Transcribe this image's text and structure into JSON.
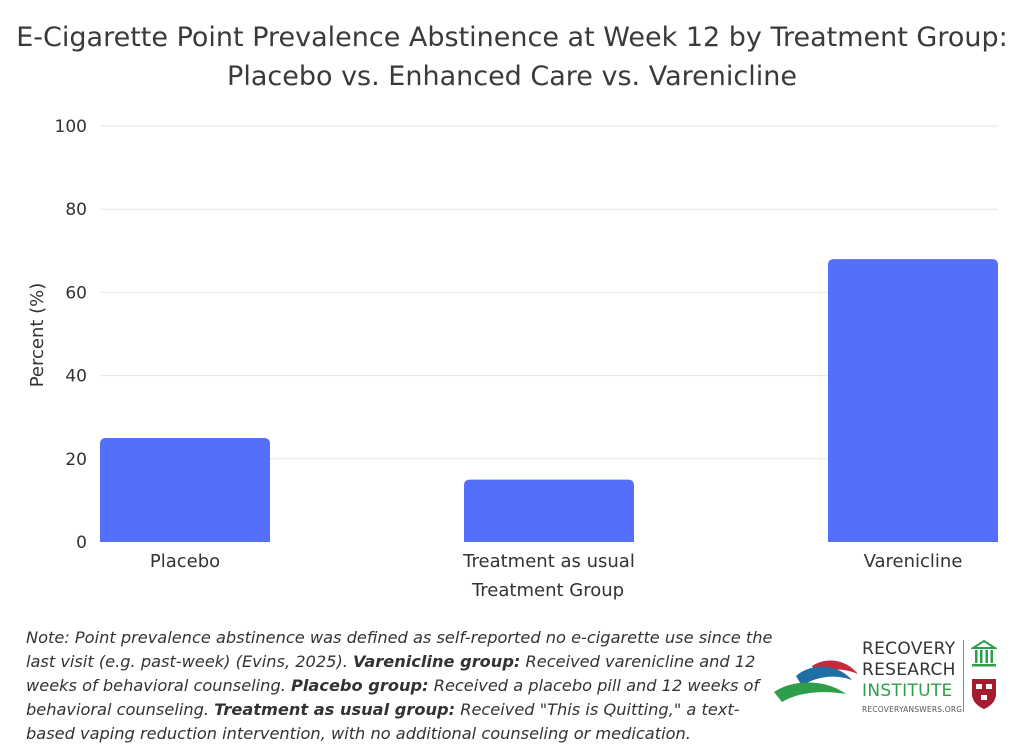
{
  "chart_data": {
    "type": "bar",
    "title_line1": "E-Cigarette Point Prevalence Abstinence at Week 12 by Treatment Group:",
    "title_line2": "Placebo vs. Enhanced Care vs. Varenicline",
    "categories": [
      [
        "Placebo"
      ],
      [
        "Treatment as usual"
      ],
      [
        "Varenicline"
      ]
    ],
    "values": [
      25,
      15,
      68
    ],
    "xlabel": "Treatment Group",
    "ylabel": "Percent (%)",
    "ylim": [
      0,
      100
    ],
    "yticks": [
      0,
      20,
      40,
      60,
      80,
      100
    ],
    "grid": true,
    "bar_color": "#5470fb",
    "grid_color": "#e4e4e4"
  },
  "note": {
    "part1": "Note: Point prevalence abstinence was defined as self-reported no e-cigarette use since the last visit (e.g. past-week) (Evins, 2025). ",
    "vare_label": "Varenicline group:",
    "vare_text": " Received varenicline and 12 weeks of behavioral counseling. ",
    "placebo_label": "Placebo group:",
    "placebo_text": " Received a placebo pill and 12 weeks of behavioral counseling. ",
    "tau_label": "Treatment as usual group:",
    "tau_text": " Received \"This is Quitting,\" a text-based vaping reduction intervention, with no additional counseling or medication."
  },
  "logo": {
    "line1": "RECOVERY",
    "line2": "RESEARCH",
    "line3": "INSTITUTE",
    "url": "RECOVERYANSWERS.ORG",
    "colors": {
      "red": "#c8283c",
      "blue": "#1e6fa5",
      "green": "#2e9e4a",
      "harvard": "#a51c30"
    }
  }
}
